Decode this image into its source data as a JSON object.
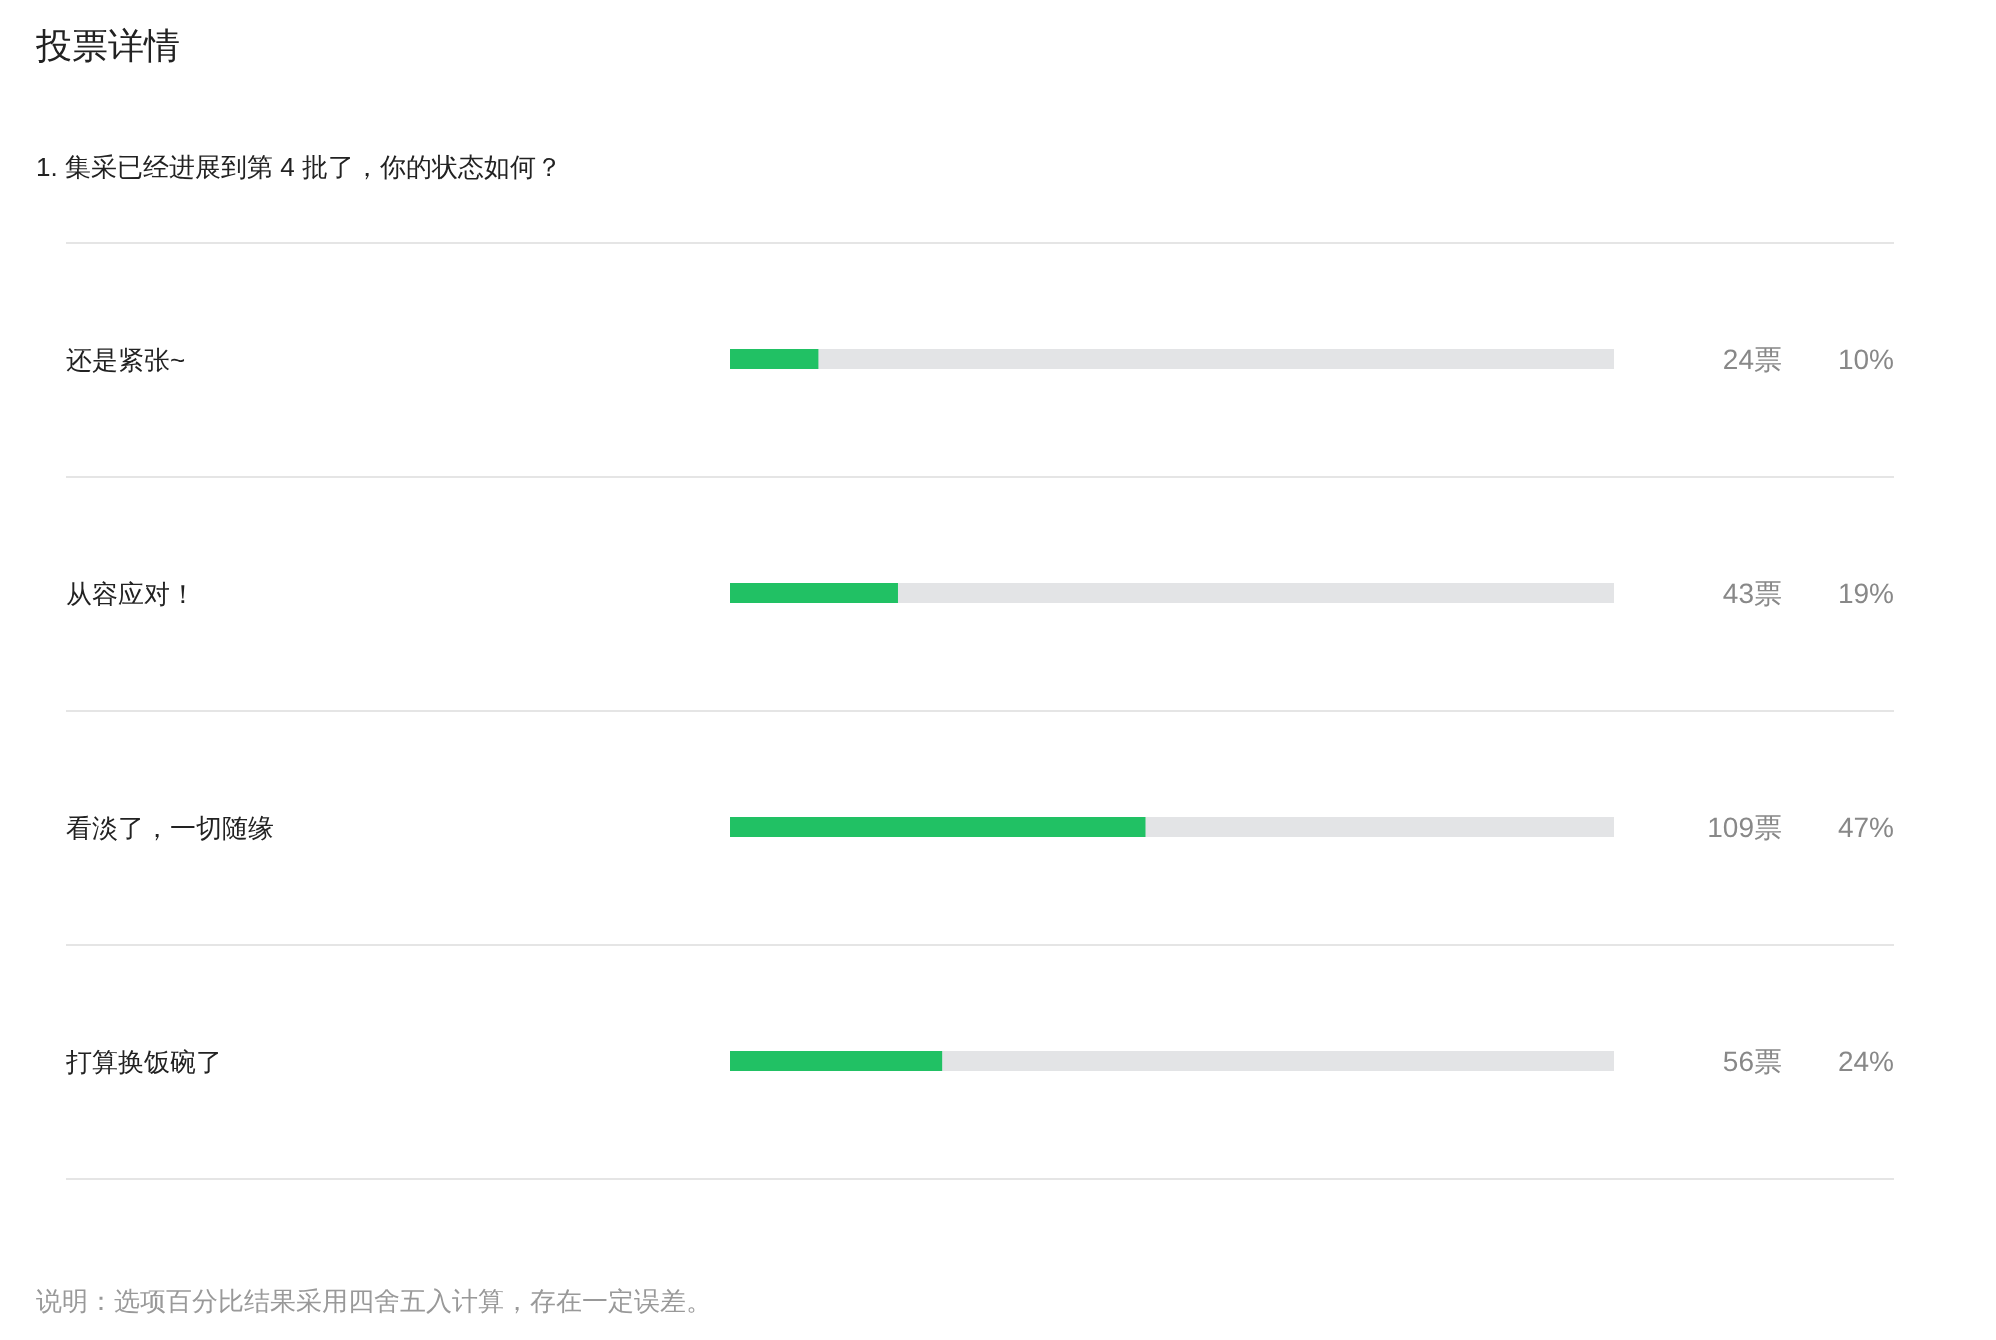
{
  "chart_data": {
    "type": "bar",
    "orientation": "horizontal",
    "title": "投票详情",
    "subtitle": "1. 集采已经进展到第 4 批了，你的状态如何？",
    "categories": [
      "还是紧张~",
      "从容应对！",
      "看淡了，一切随缘",
      "打算换饭碗了"
    ],
    "values": [
      10,
      19,
      47,
      24
    ],
    "value_labels": [
      "10%",
      "19%",
      "47%",
      "24%"
    ],
    "color": "#21c164",
    "xlim": [
      0,
      100
    ],
    "annotations": [
      "24票",
      "43票",
      "109票",
      "56票",
      "说明：选项百分比结果采用四舍五入计算，存在一定误差。"
    ]
  }
}
